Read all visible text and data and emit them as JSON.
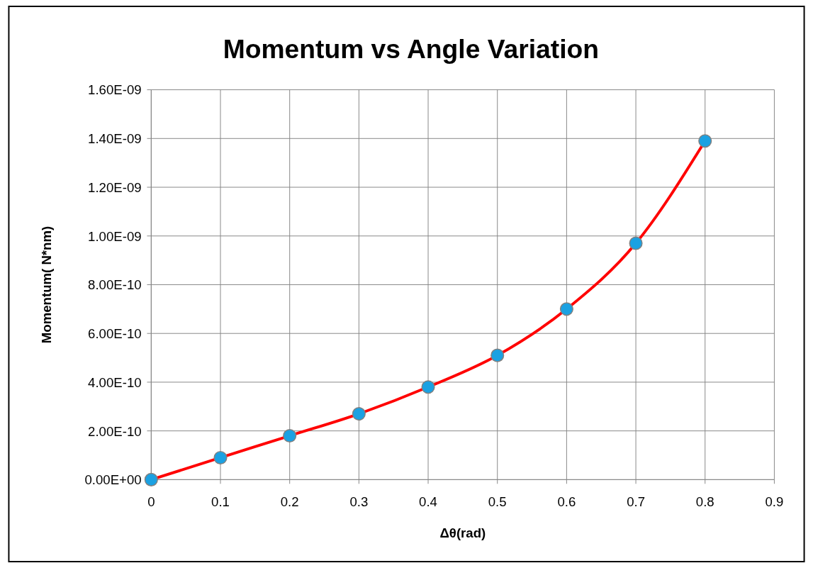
{
  "chart_data": {
    "type": "line",
    "title": "Momentum vs Angle Variation",
    "xlabel": "Δθ(rad)",
    "ylabel": "Momentum( N*nm)",
    "x": [
      0,
      0.1,
      0.2,
      0.3,
      0.4,
      0.5,
      0.6,
      0.7,
      0.8
    ],
    "series": [
      {
        "color": "#ff0000",
        "colors": [
          "#1ba1e2",
          "#1ba1e2",
          "#1ba1e2",
          "#1ba1e2",
          "#1ba1e2",
          "#1ba1e2",
          "#1ba1e2",
          "#1ba1e2",
          "#1ba1e2"
        ],
        "values": [
          0,
          9e-11,
          1.8e-10,
          2.7e-10,
          3.8e-10,
          5.1e-10,
          7e-10,
          9.7e-10,
          1.39e-09
        ]
      }
    ],
    "marker": "circle",
    "line_style": "solid",
    "xlim": [
      0,
      0.9
    ],
    "xticks": [
      0,
      0.1,
      0.2,
      0.3,
      0.4,
      0.5,
      0.6,
      0.7,
      0.8,
      0.9
    ],
    "ylim": [
      0,
      1.6e-09
    ],
    "yticks": [
      {
        "value": 0,
        "label": "0.00E+00"
      },
      {
        "value": 2e-10,
        "label": "2.00E-10"
      },
      {
        "value": 4e-10,
        "label": "4.00E-10"
      },
      {
        "value": 6e-10,
        "label": "6.00E-10"
      },
      {
        "value": 8e-10,
        "label": "8.00E-10"
      },
      {
        "value": 1e-09,
        "label": "1.00E-09"
      },
      {
        "value": 1.2e-09,
        "label": "1.20E-09"
      },
      {
        "value": 1.4e-09,
        "label": "1.40E-09"
      },
      {
        "value": 1.6e-09,
        "label": "1.60E-09"
      }
    ],
    "grid": true
  }
}
